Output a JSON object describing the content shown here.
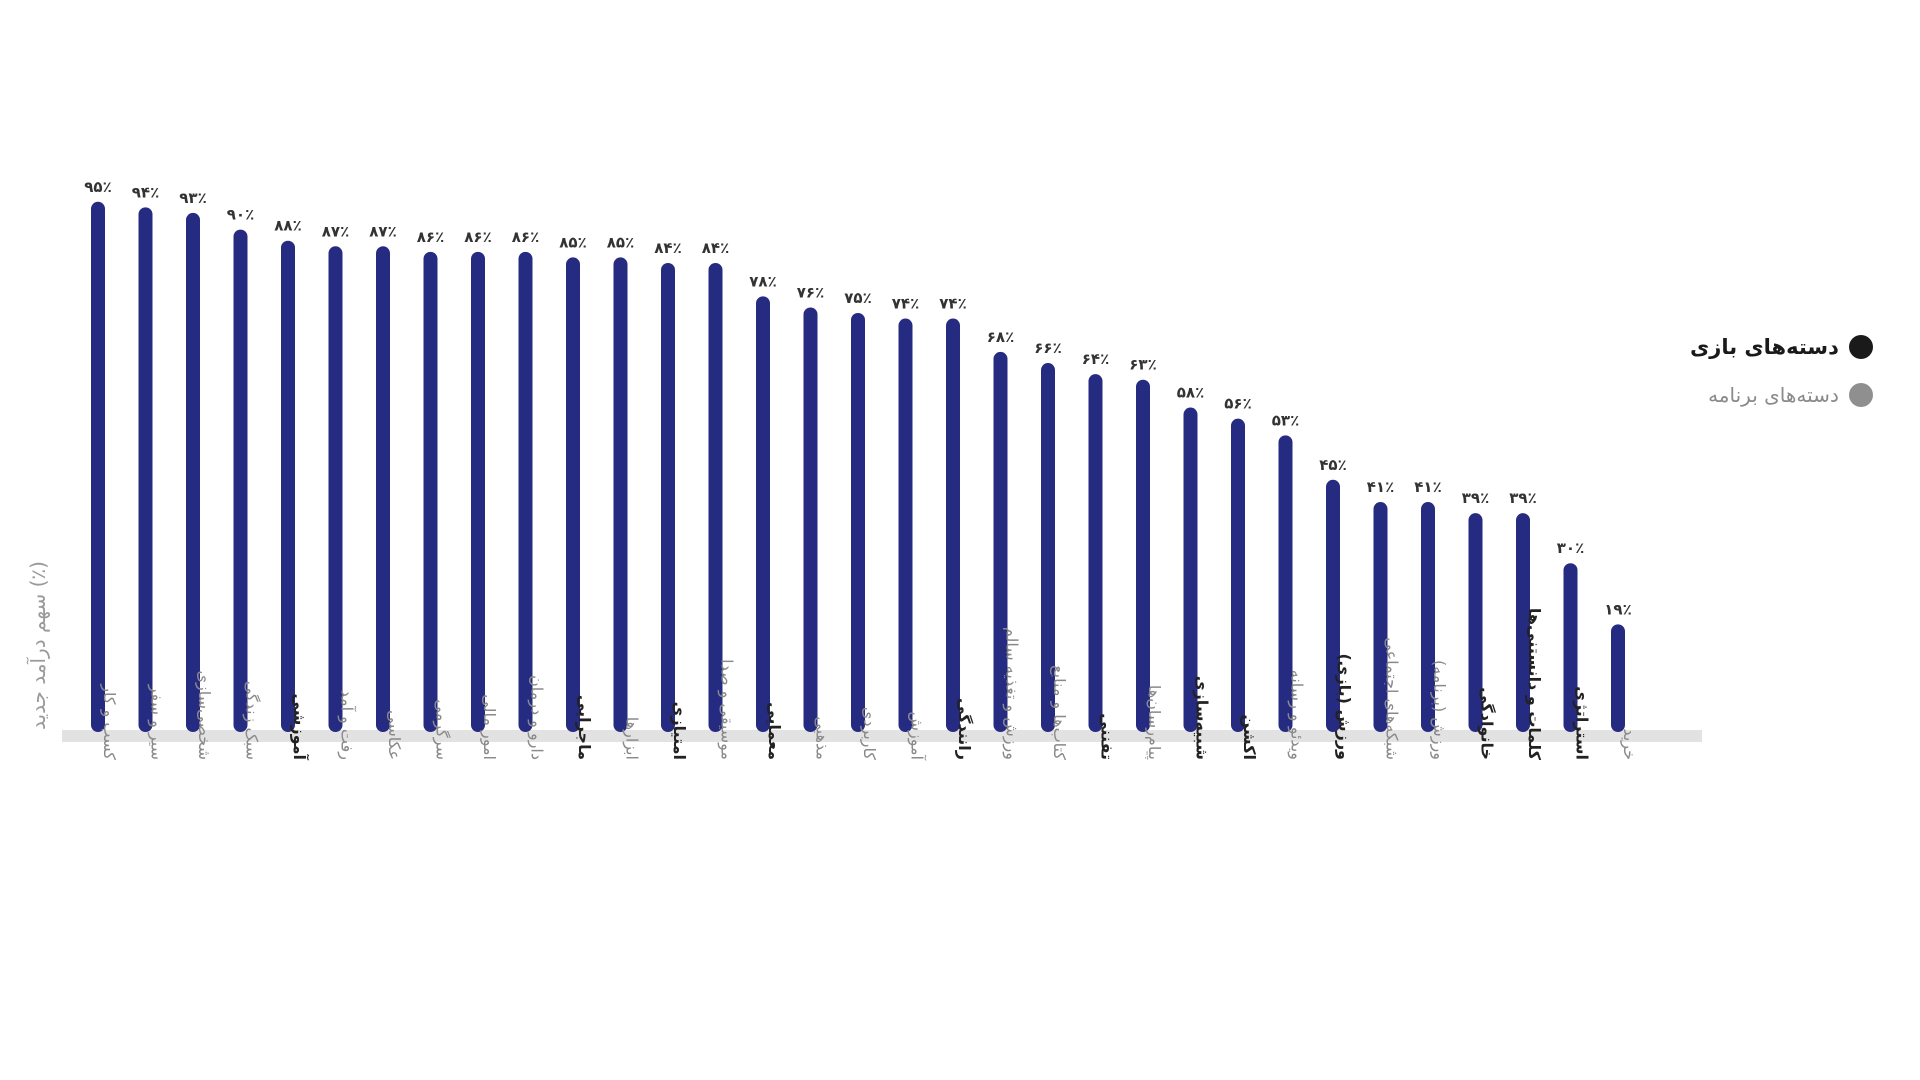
{
  "chart_data": {
    "type": "bar",
    "ylabel": "سهم درآمد جدید (٪)",
    "ylim": [
      0,
      100
    ],
    "colors": {
      "bar": "#262b82",
      "baseline": "#e2e2e2",
      "game_dot": "#1a1a1a",
      "app_dot": "#8f8f8f"
    },
    "legend": {
      "placement": "right",
      "game_label": "دسته‌های بازی",
      "app_label": "دسته‌های برنامه"
    },
    "categories": [
      {
        "label": "کسب و کار",
        "value": 95,
        "value_label": "۹۵٪",
        "group": "app"
      },
      {
        "label": "سیر و سفر",
        "value": 94,
        "value_label": "۹۴٪",
        "group": "app"
      },
      {
        "label": "شخصی‌سازی",
        "value": 93,
        "value_label": "۹۳٪",
        "group": "app"
      },
      {
        "label": "سبک زندگی",
        "value": 90,
        "value_label": "۹۰٪",
        "group": "app"
      },
      {
        "label": "آموزشی",
        "value": 88,
        "value_label": "۸۸٪",
        "group": "game"
      },
      {
        "label": "رفت و آمد",
        "value": 87,
        "value_label": "۸۷٪",
        "group": "app"
      },
      {
        "label": "عکاسی",
        "value": 87,
        "value_label": "۸۷٪",
        "group": "app"
      },
      {
        "label": "سرگرمی",
        "value": 86,
        "value_label": "۸۶٪",
        "group": "app"
      },
      {
        "label": "امور مالی",
        "value": 86,
        "value_label": "۸۶٪",
        "group": "app"
      },
      {
        "label": "دارو و درمان",
        "value": 86,
        "value_label": "۸۶٪",
        "group": "app"
      },
      {
        "label": "ماجرایی",
        "value": 85,
        "value_label": "۸۵٪",
        "group": "game"
      },
      {
        "label": "ابزارها",
        "value": 85,
        "value_label": "۸۵٪",
        "group": "app"
      },
      {
        "label": "امتیازی",
        "value": 84,
        "value_label": "۸۴٪",
        "group": "game"
      },
      {
        "label": "موسیقی و صدا",
        "value": 84,
        "value_label": "۸۴٪",
        "group": "app"
      },
      {
        "label": "معمایی",
        "value": 78,
        "value_label": "۷۸٪",
        "group": "game"
      },
      {
        "label": "مذهبی",
        "value": 76,
        "value_label": "۷۶٪",
        "group": "app"
      },
      {
        "label": "کاربردی",
        "value": 75,
        "value_label": "۷۵٪",
        "group": "app"
      },
      {
        "label": "آموزش",
        "value": 74,
        "value_label": "۷۴٪",
        "group": "app"
      },
      {
        "label": "رانندگی",
        "value": 74,
        "value_label": "۷۴٪",
        "group": "game"
      },
      {
        "label": "ورزش و تغذیه سالم",
        "value": 68,
        "value_label": "۶۸٪",
        "group": "app"
      },
      {
        "label": "کتاب‌ها و منابع",
        "value": 66,
        "value_label": "۶۶٪",
        "group": "app"
      },
      {
        "label": "تفننی",
        "value": 64,
        "value_label": "۶۴٪",
        "group": "game"
      },
      {
        "label": "پیام‌رسان‌ها",
        "value": 63,
        "value_label": "۶۳٪",
        "group": "app"
      },
      {
        "label": "شبیه‌سازی",
        "value": 58,
        "value_label": "۵۸٪",
        "group": "game"
      },
      {
        "label": "اکشن",
        "value": 56,
        "value_label": "۵۶٪",
        "group": "game"
      },
      {
        "label": "ویدئو و رسانه",
        "value": 53,
        "value_label": "۵۳٪",
        "group": "app"
      },
      {
        "label": "ورزش (بازی)",
        "value": 45,
        "value_label": "۴۵٪",
        "group": "game"
      },
      {
        "label": "شبکه‌های اجتماعی",
        "value": 41,
        "value_label": "۴۱٪",
        "group": "app"
      },
      {
        "label": "ورزش (برنامه)",
        "value": 41,
        "value_label": "۴۱٪",
        "group": "app"
      },
      {
        "label": "خانوادگی",
        "value": 39,
        "value_label": "۳۹٪",
        "group": "game"
      },
      {
        "label": "کلمات و دانستنی‌ها",
        "value": 39,
        "value_label": "۳۹٪",
        "group": "game"
      },
      {
        "label": "استراتژی",
        "value": 30,
        "value_label": "۳۰٪",
        "group": "game"
      },
      {
        "label": "خرید",
        "value": 19,
        "value_label": "۱۹٪",
        "group": "app"
      }
    ]
  }
}
